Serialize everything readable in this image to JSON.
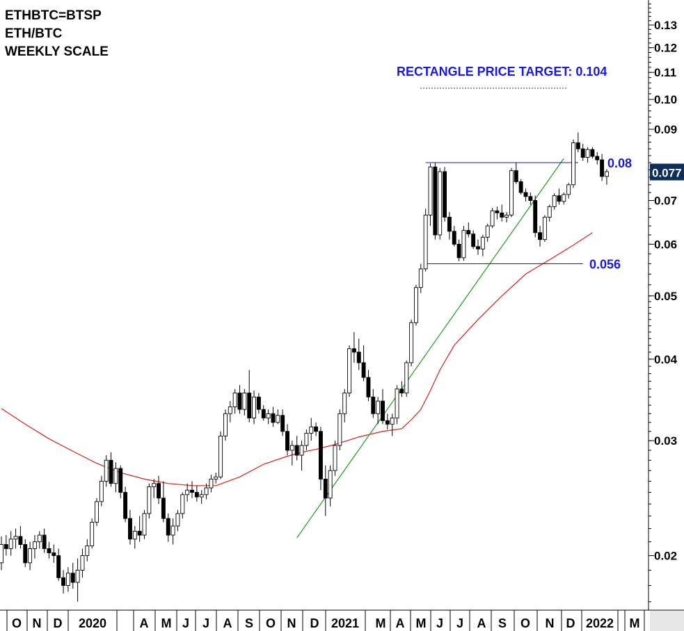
{
  "chart_data": {
    "type": "candlestick",
    "title_lines": [
      "ETHBTC=BTSP",
      "ETH/BTC",
      "WEEKLY SCALE"
    ],
    "y_scale": "log",
    "ylim": [
      0.0165,
      0.142
    ],
    "y_ticks": [
      "0.13",
      "0.12",
      "0.11",
      "0.10",
      "0.09",
      "0.07",
      "0.06",
      "0.05",
      "0.04",
      "0.03",
      "0.02"
    ],
    "x_labels": [
      "O",
      "N",
      "D",
      "2020",
      "A",
      "M",
      "J",
      "J",
      "A",
      "S",
      "O",
      "N",
      "D",
      "2021",
      "M",
      "A",
      "M",
      "J",
      "J",
      "A",
      "S",
      "O",
      "N",
      "D",
      "2022",
      "M"
    ],
    "last_price_label": "0.077",
    "colors": {
      "up": "#ffffff",
      "down": "#000000",
      "moving_average": "#d42020",
      "trendline": "#1f9a1f",
      "annotation": "#1a1ad6",
      "last_price_bg": "#0e2f5a"
    },
    "annotations": {
      "target_label": "RECTANGLE PRICE TARGET: 0.104",
      "target_value": 0.104,
      "resistance_label": "0.08",
      "resistance_value": 0.08,
      "support_label": "0.056",
      "support_value": 0.056,
      "trendline_start": {
        "week": 62,
        "value": 0.0213
      },
      "trendline_end": {
        "week": 118,
        "value": 0.0812
      }
    },
    "candles": [
      [
        0.0195,
        0.0214,
        0.019,
        0.0208
      ],
      [
        0.0208,
        0.0215,
        0.02,
        0.0205
      ],
      [
        0.0205,
        0.0218,
        0.02,
        0.0212
      ],
      [
        0.0212,
        0.022,
        0.0205,
        0.0214
      ],
      [
        0.0214,
        0.0222,
        0.0205,
        0.0208
      ],
      [
        0.0208,
        0.0212,
        0.0192,
        0.0195
      ],
      [
        0.0195,
        0.021,
        0.019,
        0.0205
      ],
      [
        0.0205,
        0.0215,
        0.0198,
        0.021
      ],
      [
        0.021,
        0.0218,
        0.0205,
        0.0215
      ],
      [
        0.0215,
        0.022,
        0.0202,
        0.0205
      ],
      [
        0.0205,
        0.021,
        0.0198,
        0.0202
      ],
      [
        0.0202,
        0.0208,
        0.0195,
        0.02
      ],
      [
        0.02,
        0.0205,
        0.0183,
        0.0185
      ],
      [
        0.0185,
        0.019,
        0.0175,
        0.018
      ],
      [
        0.018,
        0.0192,
        0.0176,
        0.0188
      ],
      [
        0.0188,
        0.0195,
        0.0178,
        0.0182
      ],
      [
        0.0182,
        0.0198,
        0.017,
        0.019
      ],
      [
        0.019,
        0.0205,
        0.0185,
        0.02
      ],
      [
        0.02,
        0.0212,
        0.0196,
        0.0207
      ],
      [
        0.0207,
        0.0228,
        0.0205,
        0.0225
      ],
      [
        0.0225,
        0.0245,
        0.0222,
        0.0242
      ],
      [
        0.0242,
        0.0265,
        0.0238,
        0.026
      ],
      [
        0.026,
        0.0285,
        0.0255,
        0.028
      ],
      [
        0.028,
        0.0288,
        0.0255,
        0.0258
      ],
      [
        0.0258,
        0.0278,
        0.025,
        0.0272
      ],
      [
        0.0272,
        0.0275,
        0.0245,
        0.025
      ],
      [
        0.025,
        0.0255,
        0.0225,
        0.0228
      ],
      [
        0.0228,
        0.0235,
        0.0208,
        0.0212
      ],
      [
        0.0212,
        0.0222,
        0.0205,
        0.0218
      ],
      [
        0.0218,
        0.023,
        0.021,
        0.0215
      ],
      [
        0.0215,
        0.0235,
        0.0212,
        0.0232
      ],
      [
        0.0232,
        0.0258,
        0.0228,
        0.0255
      ],
      [
        0.0255,
        0.0262,
        0.0245,
        0.0258
      ],
      [
        0.0258,
        0.0265,
        0.024,
        0.0245
      ],
      [
        0.0245,
        0.026,
        0.0225,
        0.0228
      ],
      [
        0.0228,
        0.0232,
        0.021,
        0.0215
      ],
      [
        0.0215,
        0.0228,
        0.0208,
        0.0222
      ],
      [
        0.0222,
        0.0235,
        0.0218,
        0.0232
      ],
      [
        0.0232,
        0.025,
        0.0228,
        0.0248
      ],
      [
        0.0248,
        0.0258,
        0.0242,
        0.0252
      ],
      [
        0.0252,
        0.026,
        0.0245,
        0.025
      ],
      [
        0.025,
        0.0256,
        0.0242,
        0.0246
      ],
      [
        0.0246,
        0.0252,
        0.024,
        0.0248
      ],
      [
        0.0248,
        0.0258,
        0.0244,
        0.0254
      ],
      [
        0.0254,
        0.0266,
        0.025,
        0.0262
      ],
      [
        0.0262,
        0.0268,
        0.0258,
        0.0264
      ],
      [
        0.0264,
        0.031,
        0.0262,
        0.0305
      ],
      [
        0.0305,
        0.0335,
        0.03,
        0.033
      ],
      [
        0.033,
        0.0345,
        0.032,
        0.0338
      ],
      [
        0.0338,
        0.036,
        0.033,
        0.0355
      ],
      [
        0.0355,
        0.0365,
        0.033,
        0.0335
      ],
      [
        0.0335,
        0.036,
        0.0328,
        0.0355
      ],
      [
        0.0355,
        0.0385,
        0.032,
        0.0325
      ],
      [
        0.0325,
        0.0358,
        0.0318,
        0.035
      ],
      [
        0.035,
        0.0355,
        0.033,
        0.0335
      ],
      [
        0.0335,
        0.034,
        0.0322,
        0.0325
      ],
      [
        0.0325,
        0.0335,
        0.0318,
        0.033
      ],
      [
        0.033,
        0.0338,
        0.0315,
        0.032
      ],
      [
        0.032,
        0.0335,
        0.0318,
        0.0328
      ],
      [
        0.0328,
        0.0335,
        0.0305,
        0.031
      ],
      [
        0.031,
        0.0318,
        0.0285,
        0.029
      ],
      [
        0.029,
        0.03,
        0.0275,
        0.0295
      ],
      [
        0.0295,
        0.0305,
        0.028,
        0.0285
      ],
      [
        0.0285,
        0.03,
        0.027,
        0.0295
      ],
      [
        0.0295,
        0.0312,
        0.029,
        0.0308
      ],
      [
        0.0308,
        0.0325,
        0.03,
        0.0315
      ],
      [
        0.0315,
        0.032,
        0.0305,
        0.031
      ],
      [
        0.031,
        0.0315,
        0.0252,
        0.0262
      ],
      [
        0.0262,
        0.0275,
        0.023,
        0.0245
      ],
      [
        0.0245,
        0.0275,
        0.0238,
        0.027
      ],
      [
        0.027,
        0.03,
        0.0265,
        0.0295
      ],
      [
        0.0295,
        0.0335,
        0.029,
        0.033
      ],
      [
        0.033,
        0.036,
        0.032,
        0.0355
      ],
      [
        0.0355,
        0.042,
        0.035,
        0.0415
      ],
      [
        0.0415,
        0.044,
        0.0395,
        0.041
      ],
      [
        0.041,
        0.043,
        0.0385,
        0.0395
      ],
      [
        0.0395,
        0.042,
        0.037,
        0.0375
      ],
      [
        0.0375,
        0.0385,
        0.0345,
        0.035
      ],
      [
        0.035,
        0.036,
        0.0325,
        0.033
      ],
      [
        0.033,
        0.035,
        0.0318,
        0.0345
      ],
      [
        0.0345,
        0.036,
        0.0318,
        0.0322
      ],
      [
        0.0322,
        0.033,
        0.0312,
        0.0318
      ],
      [
        0.0318,
        0.033,
        0.0305,
        0.0325
      ],
      [
        0.0325,
        0.0365,
        0.0318,
        0.036
      ],
      [
        0.036,
        0.037,
        0.035,
        0.0355
      ],
      [
        0.0355,
        0.0398,
        0.035,
        0.0395
      ],
      [
        0.0395,
        0.046,
        0.039,
        0.0455
      ],
      [
        0.0455,
        0.052,
        0.045,
        0.0515
      ],
      [
        0.0515,
        0.056,
        0.0505,
        0.055
      ],
      [
        0.055,
        0.068,
        0.0545,
        0.0665
      ],
      [
        0.0665,
        0.0798,
        0.064,
        0.0788
      ],
      [
        0.0788,
        0.08,
        0.061,
        0.062
      ],
      [
        0.062,
        0.0785,
        0.061,
        0.0775
      ],
      [
        0.0775,
        0.0788,
        0.065,
        0.066
      ],
      [
        0.066,
        0.0672,
        0.061,
        0.0628
      ],
      [
        0.0628,
        0.064,
        0.0595,
        0.06
      ],
      [
        0.06,
        0.061,
        0.0565,
        0.0572
      ],
      [
        0.0572,
        0.064,
        0.0566,
        0.063
      ],
      [
        0.063,
        0.0648,
        0.0615,
        0.0622
      ],
      [
        0.0622,
        0.063,
        0.059,
        0.0595
      ],
      [
        0.0595,
        0.061,
        0.0578,
        0.059
      ],
      [
        0.059,
        0.062,
        0.0575,
        0.0615
      ],
      [
        0.0615,
        0.0645,
        0.0605,
        0.064
      ],
      [
        0.064,
        0.0682,
        0.0635,
        0.0675
      ],
      [
        0.0675,
        0.0685,
        0.0655,
        0.067
      ],
      [
        0.067,
        0.069,
        0.065,
        0.066
      ],
      [
        0.066,
        0.0672,
        0.0648,
        0.0665
      ],
      [
        0.0665,
        0.0785,
        0.066,
        0.0778
      ],
      [
        0.0778,
        0.08,
        0.0742,
        0.0748
      ],
      [
        0.0748,
        0.0755,
        0.0715,
        0.072
      ],
      [
        0.072,
        0.073,
        0.0698,
        0.071
      ],
      [
        0.071,
        0.072,
        0.069,
        0.07
      ],
      [
        0.07,
        0.0712,
        0.0615,
        0.0625
      ],
      [
        0.0625,
        0.064,
        0.0595,
        0.061
      ],
      [
        0.061,
        0.0665,
        0.0605,
        0.066
      ],
      [
        0.066,
        0.069,
        0.065,
        0.0685
      ],
      [
        0.0685,
        0.0718,
        0.0678,
        0.0712
      ],
      [
        0.0712,
        0.073,
        0.069,
        0.0698
      ],
      [
        0.0698,
        0.072,
        0.069,
        0.0715
      ],
      [
        0.0715,
        0.0745,
        0.0705,
        0.074
      ],
      [
        0.074,
        0.0868,
        0.0732,
        0.0858
      ],
      [
        0.0858,
        0.089,
        0.083,
        0.084
      ],
      [
        0.084,
        0.0855,
        0.0805,
        0.0815
      ],
      [
        0.0815,
        0.0845,
        0.08,
        0.0838
      ],
      [
        0.0838,
        0.0845,
        0.0812,
        0.0818
      ],
      [
        0.0818,
        0.083,
        0.0795,
        0.0808
      ],
      [
        0.0808,
        0.0825,
        0.075,
        0.0762
      ],
      [
        0.0762,
        0.0782,
        0.074,
        0.0775
      ]
    ],
    "moving_average": [
      [
        0,
        0.0336
      ],
      [
        5,
        0.0318
      ],
      [
        10,
        0.0302
      ],
      [
        15,
        0.0289
      ],
      [
        20,
        0.0277
      ],
      [
        25,
        0.0268
      ],
      [
        30,
        0.0262
      ],
      [
        35,
        0.0258
      ],
      [
        40,
        0.0256
      ],
      [
        45,
        0.0256
      ],
      [
        50,
        0.0264
      ],
      [
        55,
        0.0276
      ],
      [
        60,
        0.0284
      ],
      [
        64,
        0.0289
      ],
      [
        66,
        0.0291
      ],
      [
        70,
        0.0296
      ],
      [
        75,
        0.0304
      ],
      [
        80,
        0.031
      ],
      [
        84,
        0.0313
      ],
      [
        86,
        0.0323
      ],
      [
        88,
        0.0335
      ],
      [
        90,
        0.0358
      ],
      [
        92,
        0.0385
      ],
      [
        95,
        0.042
      ],
      [
        100,
        0.046
      ],
      [
        105,
        0.05
      ],
      [
        110,
        0.054
      ],
      [
        115,
        0.0568
      ],
      [
        120,
        0.0598
      ],
      [
        124,
        0.0625
      ]
    ]
  }
}
